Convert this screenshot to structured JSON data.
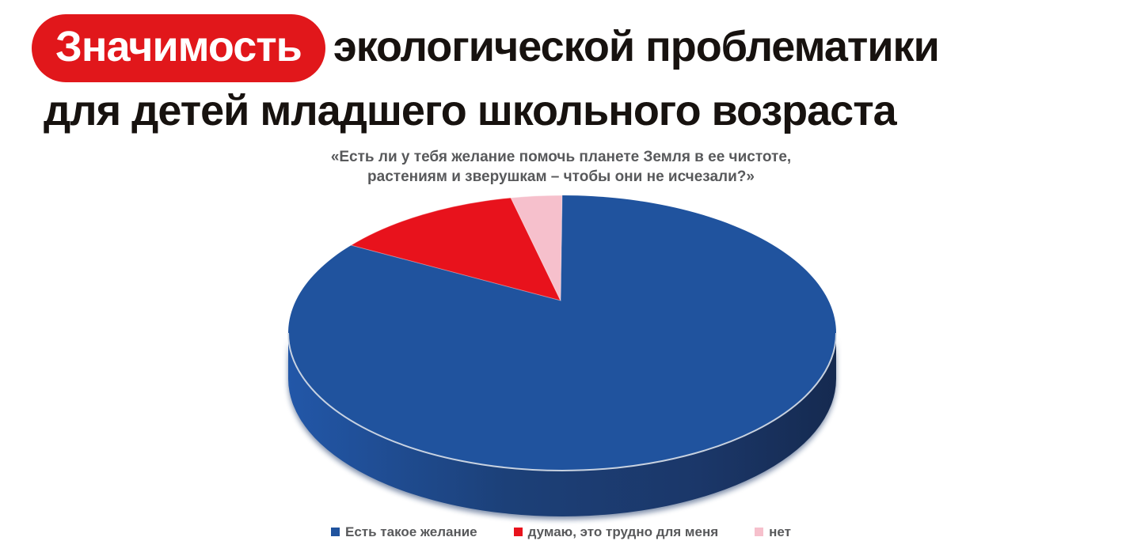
{
  "page": {
    "background": "#ffffff"
  },
  "header": {
    "highlighted_word": "Значимость",
    "title_line1_rest": "экологической проблематики",
    "title_line2": "для детей младшего школьного возраста",
    "highlight_color": "#e1171b",
    "highlight_text_color": "#ffffff",
    "title_text_color": "#17120f"
  },
  "question": {
    "line1": "«Есть ли у тебя желание помочь планете Земля в ее чистоте,",
    "line2": "растениям и зверушкам – чтобы они не исчезали?»",
    "color": "#58595b"
  },
  "chart_data": {
    "type": "pie",
    "style": "3d",
    "title": "«Есть ли у тебя желание помочь планете Земля в ее чистоте, растениям и зверушкам – чтобы они не исчезали?»",
    "values_are_estimated_from_pixels": true,
    "unit": "percent",
    "start_angle_deg_from_12_oclock": 0,
    "direction": "clockwise",
    "legend_position": "bottom",
    "slices": [
      {
        "label": "Есть такое желание",
        "value": 86,
        "color": "#20539e"
      },
      {
        "label": "думаю, это трудно для меня",
        "value": 11,
        "color": "#e8121c"
      },
      {
        "label": "нет",
        "value": 3,
        "color": "#f6c0cc"
      }
    ],
    "side_colors": [
      "#2257a8",
      "#1c4078",
      "#1b3769",
      "#152a50"
    ],
    "rim_highlight_color": "#d9e0e9",
    "legend_text_color": "#58595b"
  }
}
